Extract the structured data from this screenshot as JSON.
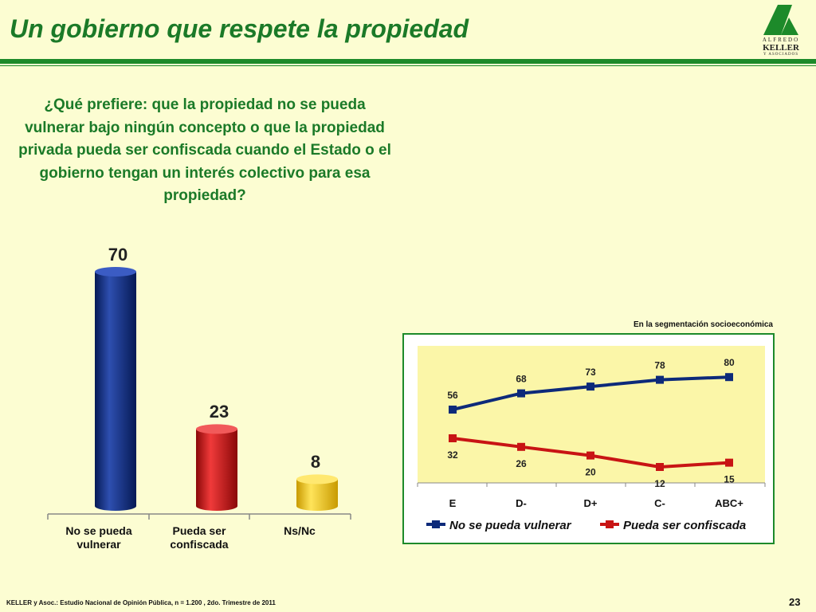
{
  "title": "Un gobierno que respete la propiedad",
  "logo": {
    "line1": "ALFREDO",
    "line2": "KELLER",
    "line3": "Y ASOCIADOS"
  },
  "question": "¿Qué prefiere: que la propiedad no se pueda vulnerar bajo ningún concepto o que la propiedad privada pueda ser confiscada cuando el Estado o el gobierno tengan un interés colectivo para esa propiedad?",
  "segment_note": "En la segmentación socioeconómica",
  "footer": "KELLER y Asoc.: Estudio Nacional de Opinión Pública, n = 1.200 , 2do. Trimestre de 2011",
  "page_number": "23",
  "colors": {
    "title_green": "#1B7A28",
    "navy": "#0D2A7A",
    "red": "#C81414",
    "yellow": "#F2C200",
    "plot_bg": "#FBF6A8"
  },
  "chart_data": [
    {
      "type": "bar",
      "categories": [
        "No se pueda vulnerar",
        "Pueda ser confiscada",
        "Ns/Nc"
      ],
      "category_labels": [
        "No se pueda\nvulnerar",
        "Pueda ser\nconfiscada",
        "Ns/Nc"
      ],
      "values": [
        70,
        23,
        8
      ],
      "colors": [
        "#0D2A7A",
        "#C81414",
        "#F2C200"
      ],
      "ylim": [
        0,
        100
      ]
    },
    {
      "type": "line",
      "categories": [
        "E",
        "D-",
        "D+",
        "C-",
        "ABC+"
      ],
      "series": [
        {
          "name": "No se pueda vulnerar",
          "values": [
            56,
            68,
            73,
            78,
            80
          ],
          "color": "#0D2A7A"
        },
        {
          "name": "Pueda ser confiscada",
          "values": [
            32,
            26,
            20,
            12,
            15
          ],
          "color": "#C81414"
        }
      ],
      "ylim": [
        0,
        100
      ],
      "legend": "bottom"
    }
  ]
}
